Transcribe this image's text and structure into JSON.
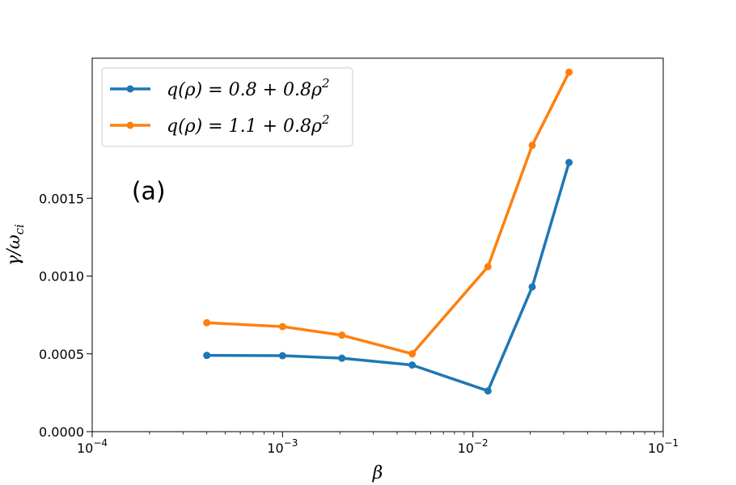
{
  "chart_data": {
    "type": "line",
    "xscale": "log",
    "xlim": [
      0.0001,
      0.1
    ],
    "ylim": [
      0,
      0.0024
    ],
    "xlabel": "β",
    "ylabel": "γ/ω",
    "ylabel_sub": "ci",
    "xticks": [
      {
        "value": 0.0001,
        "base": "10",
        "exp": "−4"
      },
      {
        "value": 0.001,
        "base": "10",
        "exp": "−3"
      },
      {
        "value": 0.01,
        "base": "10",
        "exp": "−2"
      },
      {
        "value": 0.1,
        "base": "10",
        "exp": "−1"
      }
    ],
    "yticks": [
      {
        "value": 0.0,
        "label": "0.0000"
      },
      {
        "value": 0.0005,
        "label": "0.0005"
      },
      {
        "value": 0.001,
        "label": "0.0010"
      },
      {
        "value": 0.0015,
        "label": "0.0015"
      }
    ],
    "annotation": {
      "text": "(a)",
      "x": 0.0002,
      "y": 0.00155
    },
    "legend_position": "upper-left",
    "series": [
      {
        "name_prefix": "q(ρ) = 0.8 + 0.8ρ",
        "name_sup": "2",
        "color": "#1f77b4",
        "x": [
          0.0004,
          0.001,
          0.00205,
          0.0048,
          0.012,
          0.0205,
          0.032
        ],
        "y": [
          0.00049,
          0.000488,
          0.000472,
          0.000428,
          0.000262,
          0.00093,
          0.00173
        ]
      },
      {
        "name_prefix": "q(ρ) = 1.1 + 0.8ρ",
        "name_sup": "2",
        "color": "#ff7f0e",
        "x": [
          0.0004,
          0.001,
          0.00205,
          0.0048,
          0.012,
          0.0205,
          0.032
        ],
        "y": [
          0.0007,
          0.000675,
          0.00062,
          0.0005,
          0.00106,
          0.00184,
          0.00231
        ]
      }
    ]
  }
}
